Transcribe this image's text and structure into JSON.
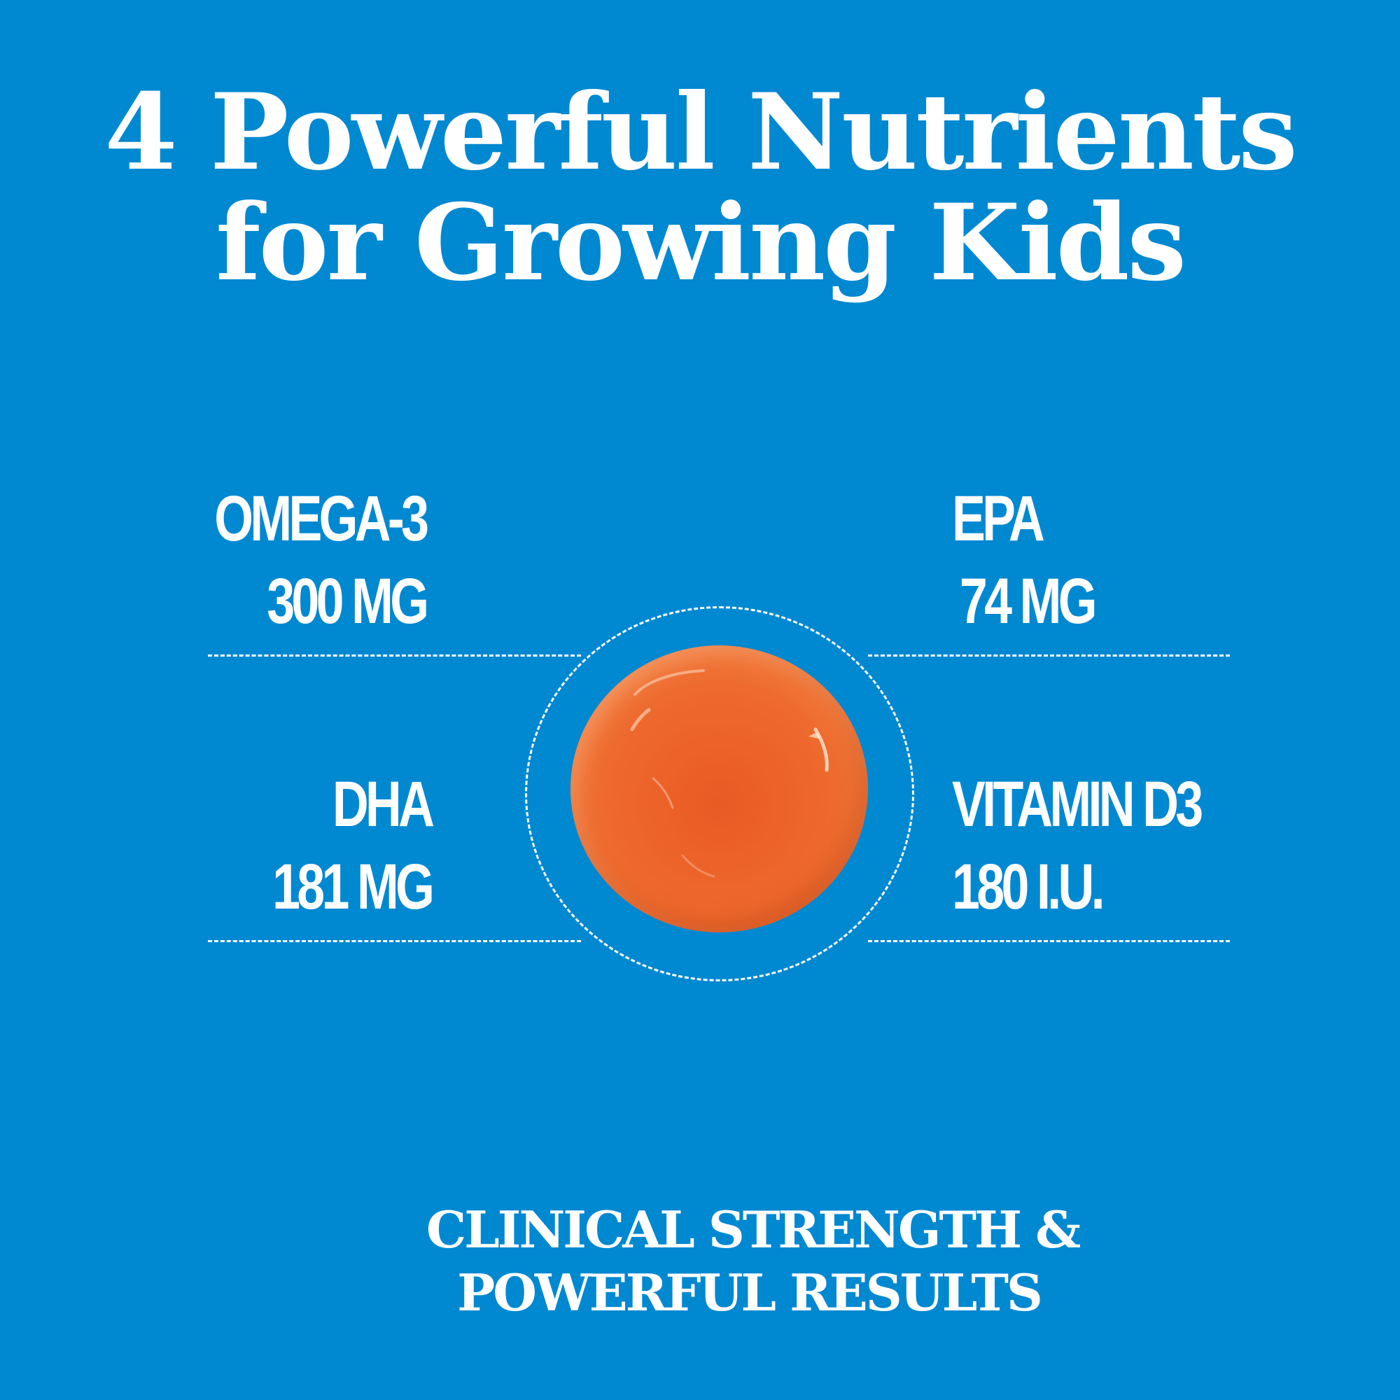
{
  "headline": {
    "line1": "4 Powerful Nutrients",
    "line2": "for Growing Kids"
  },
  "nutrients": [
    {
      "name": "OMEGA-3",
      "amount": "300 MG"
    },
    {
      "name": "EPA",
      "amount": "74 MG"
    },
    {
      "name": "DHA",
      "amount": "181 MG"
    },
    {
      "name": "VITAMIN D3",
      "amount": "180 I.U."
    }
  ],
  "tagline": {
    "line1": "CLINICAL STRENGTH &",
    "line2": "POWERFUL RESULTS"
  },
  "colors": {
    "background": "#0088d1",
    "text": "#ffffff",
    "gummy": "#ee6a2e"
  }
}
